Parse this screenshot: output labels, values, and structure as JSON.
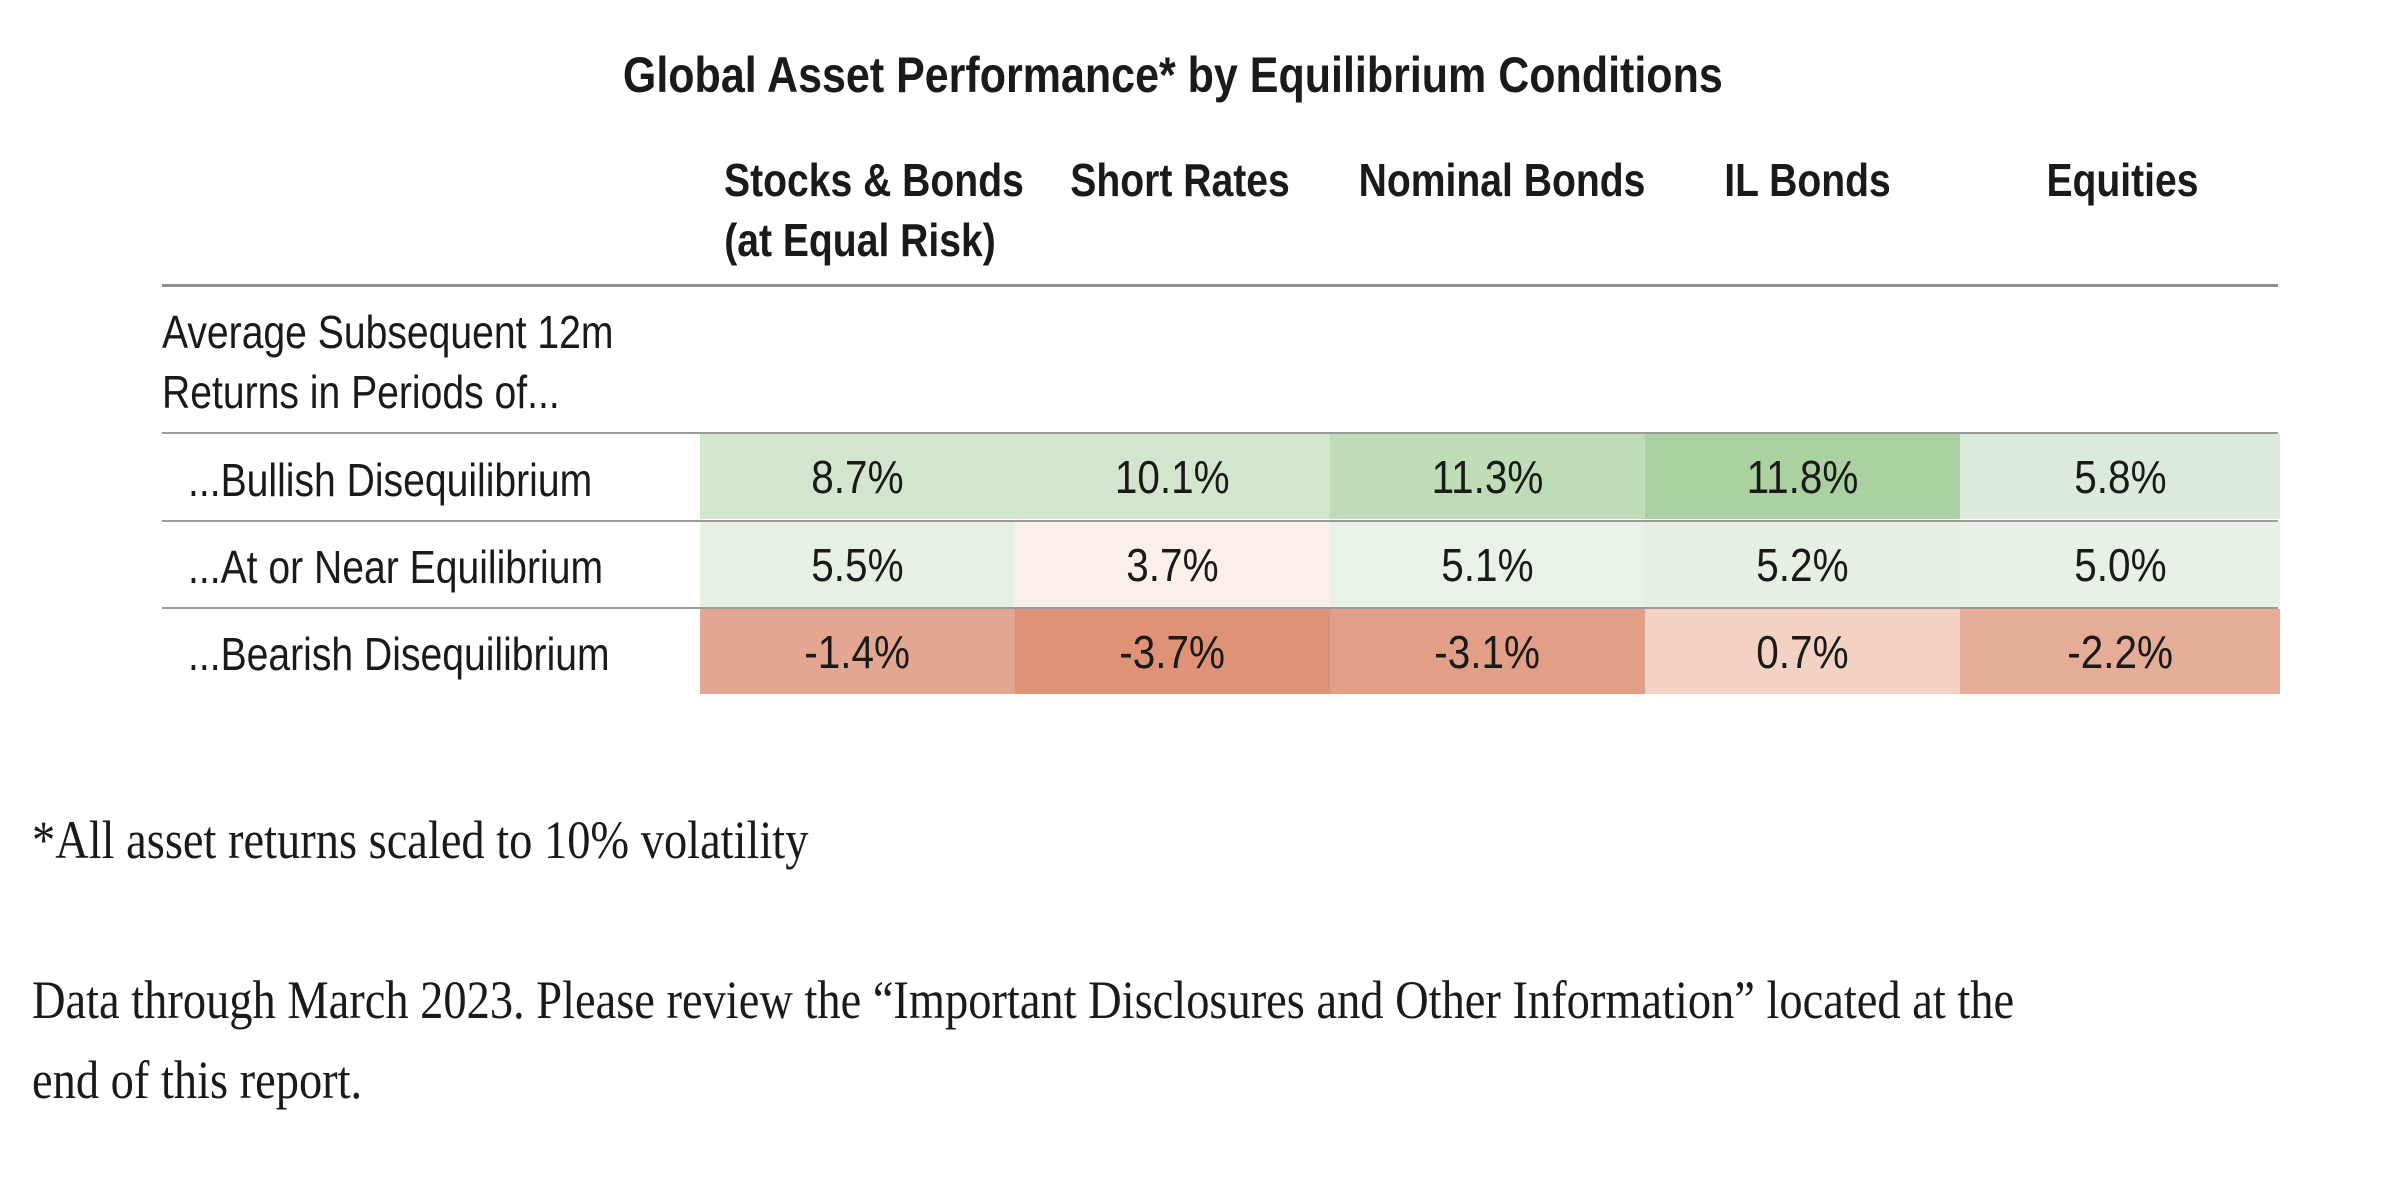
{
  "chart_data": {
    "type": "table",
    "title": "Global Asset Performance* by Equilibrium Conditions",
    "row_header": [
      "Average Subsequent 12m",
      "Returns in Periods of..."
    ],
    "columns": [
      {
        "lines": [
          "Stocks & Bonds",
          "(at Equal Risk)"
        ]
      },
      {
        "lines": [
          "Short Rates"
        ]
      },
      {
        "lines": [
          "Nominal Bonds"
        ]
      },
      {
        "lines": [
          "IL Bonds"
        ]
      },
      {
        "lines": [
          "Equities"
        ]
      }
    ],
    "rows": [
      {
        "label": "...Bullish Disequilibrium",
        "values": [
          "8.7%",
          "10.1%",
          "11.3%",
          "11.8%",
          "5.8%"
        ]
      },
      {
        "label": "...At or Near Equilibrium",
        "values": [
          "5.5%",
          "3.7%",
          "5.1%",
          "5.2%",
          "5.0%"
        ]
      },
      {
        "label": "...Bearish Disequilibrium",
        "values": [
          "-1.4%",
          "-3.7%",
          "-3.1%",
          "0.7%",
          "-2.2%"
        ]
      }
    ],
    "cell_colors": [
      [
        "#d3e5cf",
        "#d3e5cf",
        "#bedcb6",
        "#abd1a0",
        "#dceadb"
      ],
      [
        "#e6f1e3",
        "#fbefea",
        "#e8f2e6",
        "#e5f0e3",
        "#e7f1e5"
      ],
      [
        "#e3a791",
        "#de9378",
        "#e29f87",
        "#f3d2c4",
        "#e5ac97"
      ]
    ]
  },
  "footnote": "*All asset returns scaled to 10% volatility",
  "source_note": [
    "Data through March 2023. Please review the “Important Disclosures and Other Information” located at the",
    "end of this report."
  ]
}
